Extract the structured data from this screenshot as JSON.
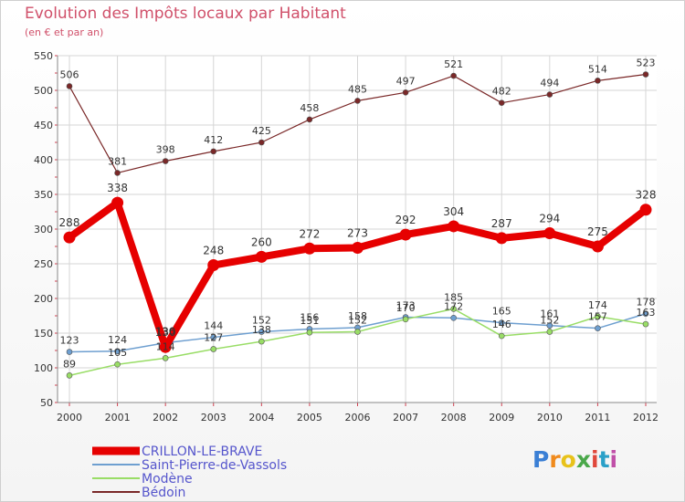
{
  "title": "Evolution des Impôts locaux par Habitant",
  "subtitle": "(en € et par an)",
  "logo": "Proxiti",
  "chart_data": {
    "type": "line",
    "title": "Evolution des Impôts locaux par Habitant",
    "ylabel": "(en € et par an)",
    "xlabel": "",
    "ylim": [
      50,
      550
    ],
    "yticks": [
      50,
      100,
      150,
      200,
      250,
      300,
      350,
      400,
      450,
      500,
      550
    ],
    "grid": true,
    "legend_position": "bottom-left",
    "categories": [
      "2000",
      "2001",
      "2002",
      "2003",
      "2004",
      "2005",
      "2006",
      "2007",
      "2008",
      "2009",
      "2010",
      "2011",
      "2012"
    ],
    "series": [
      {
        "name": "CRILLON-LE-BRAVE",
        "color": "#e60000",
        "values": [
          288,
          338,
          130,
          248,
          260,
          272,
          273,
          292,
          304,
          287,
          294,
          275,
          328
        ]
      },
      {
        "name": "Saint-Pierre-de-Vassols",
        "color": "#6e9fd0",
        "values": [
          123,
          124,
          136,
          144,
          152,
          156,
          158,
          173,
          172,
          165,
          161,
          157,
          178
        ]
      },
      {
        "name": "Modène",
        "color": "#99dd66",
        "values": [
          89,
          105,
          114,
          127,
          138,
          151,
          152,
          170,
          185,
          146,
          152,
          174,
          163
        ]
      },
      {
        "name": "Bédoin",
        "color": "#7a2828",
        "values": [
          506,
          381,
          398,
          412,
          425,
          458,
          485,
          497,
          521,
          482,
          494,
          514,
          523
        ]
      }
    ]
  }
}
